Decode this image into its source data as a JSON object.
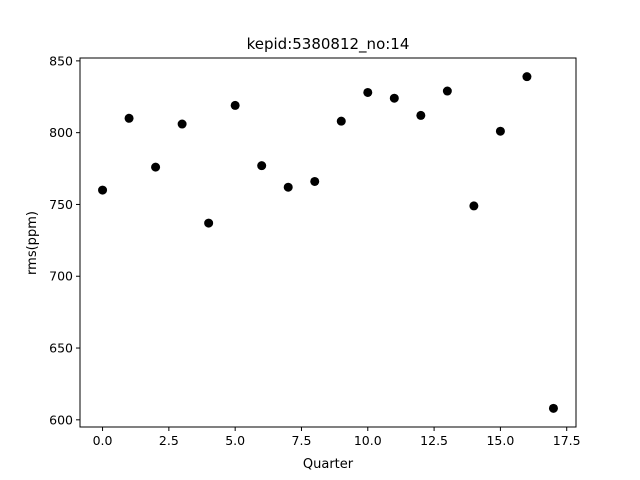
{
  "chart_data": {
    "type": "scatter",
    "title": "kepid:5380812_no:14",
    "xlabel": "Quarter",
    "ylabel": "rms(ppm)",
    "xlim": [
      -0.85,
      17.85
    ],
    "ylim": [
      595,
      852
    ],
    "x_ticks": [
      0.0,
      2.5,
      5.0,
      7.5,
      10.0,
      12.5,
      15.0,
      17.5
    ],
    "x_tick_labels": [
      "0.0",
      "2.5",
      "5.0",
      "7.5",
      "10.0",
      "12.5",
      "15.0",
      "17.5"
    ],
    "y_ticks": [
      600,
      650,
      700,
      750,
      800,
      850
    ],
    "y_tick_labels": [
      "600",
      "650",
      "700",
      "750",
      "800",
      "850"
    ],
    "grid": false,
    "marker_color": "#000000",
    "series": [
      {
        "x": [
          0,
          1,
          2,
          3,
          4,
          5,
          6,
          7,
          8,
          9,
          10,
          11,
          12,
          13,
          14,
          15,
          16,
          17
        ],
        "y": [
          760,
          810,
          776,
          806,
          737,
          819,
          777,
          762,
          766,
          808,
          828,
          824,
          812,
          829,
          749,
          801,
          839,
          608
        ]
      }
    ]
  }
}
